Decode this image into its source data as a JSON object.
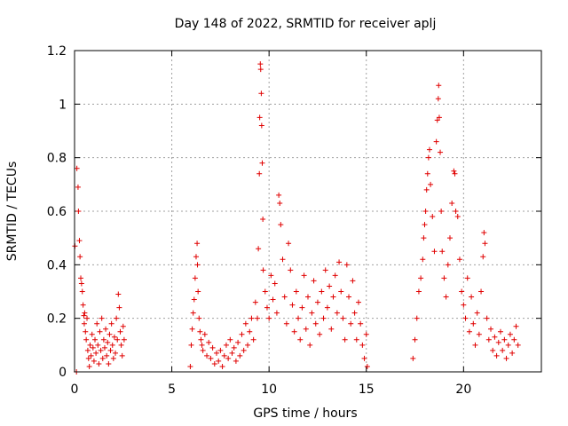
{
  "chart_data": {
    "type": "scatter",
    "title": "Day 148 of 2022, SRMTID for receiver aplj",
    "xlabel": "GPS time / hours",
    "ylabel": "SRMTID / TECUs",
    "xlim": [
      0,
      24
    ],
    "ylim": [
      0,
      1.2
    ],
    "grid": true,
    "x_ticks": [
      0,
      5,
      10,
      15,
      20
    ],
    "x_tick_labels": [
      "0",
      "5",
      "10",
      "15",
      "20"
    ],
    "y_ticks": [
      0,
      0.2,
      0.4,
      0.6,
      0.8,
      1,
      1.2
    ],
    "y_tick_labels": [
      "0",
      "0.2",
      "0.4",
      "0.6",
      "0.8",
      "1",
      "1.2"
    ],
    "marker": "+",
    "series": [
      {
        "name": "SRMTID",
        "color": "#e00000",
        "points": [
          [
            0.02,
            0.47
          ],
          [
            0.1,
            0.0
          ],
          [
            0.12,
            0.76
          ],
          [
            0.18,
            0.69
          ],
          [
            0.2,
            0.6
          ],
          [
            0.25,
            0.49
          ],
          [
            0.28,
            0.43
          ],
          [
            0.32,
            0.35
          ],
          [
            0.36,
            0.33
          ],
          [
            0.4,
            0.3
          ],
          [
            0.44,
            0.25
          ],
          [
            0.48,
            0.21
          ],
          [
            0.5,
            0.18
          ],
          [
            0.52,
            0.22
          ],
          [
            0.56,
            0.15
          ],
          [
            0.6,
            0.12
          ],
          [
            0.64,
            0.2
          ],
          [
            0.68,
            0.08
          ],
          [
            0.72,
            0.05
          ],
          [
            0.76,
            0.02
          ],
          [
            0.8,
            0.1
          ],
          [
            0.85,
            0.06
          ],
          [
            0.9,
            0.14
          ],
          [
            0.95,
            0.09
          ],
          [
            1.0,
            0.04
          ],
          [
            1.05,
            0.12
          ],
          [
            1.1,
            0.07
          ],
          [
            1.15,
            0.18
          ],
          [
            1.2,
            0.1
          ],
          [
            1.25,
            0.03
          ],
          [
            1.3,
            0.15
          ],
          [
            1.35,
            0.08
          ],
          [
            1.4,
            0.2
          ],
          [
            1.45,
            0.05
          ],
          [
            1.5,
            0.12
          ],
          [
            1.55,
            0.09
          ],
          [
            1.6,
            0.16
          ],
          [
            1.65,
            0.06
          ],
          [
            1.7,
            0.11
          ],
          [
            1.75,
            0.03
          ],
          [
            1.8,
            0.14
          ],
          [
            1.85,
            0.08
          ],
          [
            1.9,
            0.18
          ],
          [
            1.95,
            0.1
          ],
          [
            2.0,
            0.05
          ],
          [
            2.05,
            0.13
          ],
          [
            2.1,
            0.07
          ],
          [
            2.15,
            0.2
          ],
          [
            2.2,
            0.12
          ],
          [
            2.25,
            0.29
          ],
          [
            2.3,
            0.24
          ],
          [
            2.35,
            0.15
          ],
          [
            2.4,
            0.1
          ],
          [
            2.45,
            0.06
          ],
          [
            2.5,
            0.17
          ],
          [
            2.55,
            0.12
          ],
          [
            5.95,
            0.02
          ],
          [
            6.0,
            0.1
          ],
          [
            6.05,
            0.16
          ],
          [
            6.1,
            0.22
          ],
          [
            6.15,
            0.27
          ],
          [
            6.2,
            0.35
          ],
          [
            6.25,
            0.43
          ],
          [
            6.3,
            0.48
          ],
          [
            6.32,
            0.4
          ],
          [
            6.35,
            0.3
          ],
          [
            6.4,
            0.2
          ],
          [
            6.45,
            0.15
          ],
          [
            6.5,
            0.12
          ],
          [
            6.55,
            0.1
          ],
          [
            6.6,
            0.08
          ],
          [
            6.7,
            0.14
          ],
          [
            6.8,
            0.06
          ],
          [
            6.9,
            0.11
          ],
          [
            7.0,
            0.05
          ],
          [
            7.1,
            0.09
          ],
          [
            7.2,
            0.03
          ],
          [
            7.3,
            0.07
          ],
          [
            7.4,
            0.04
          ],
          [
            7.5,
            0.08
          ],
          [
            7.6,
            0.02
          ],
          [
            7.7,
            0.06
          ],
          [
            7.8,
            0.1
          ],
          [
            7.9,
            0.05
          ],
          [
            8.0,
            0.12
          ],
          [
            8.1,
            0.07
          ],
          [
            8.2,
            0.09
          ],
          [
            8.3,
            0.04
          ],
          [
            8.4,
            0.11
          ],
          [
            8.5,
            0.06
          ],
          [
            8.6,
            0.14
          ],
          [
            8.7,
            0.08
          ],
          [
            8.8,
            0.18
          ],
          [
            8.9,
            0.1
          ],
          [
            9.0,
            0.15
          ],
          [
            9.1,
            0.2
          ],
          [
            9.2,
            0.12
          ],
          [
            9.3,
            0.26
          ],
          [
            9.4,
            0.2
          ],
          [
            9.45,
            0.46
          ],
          [
            9.5,
            0.74
          ],
          [
            9.52,
            0.95
          ],
          [
            9.55,
            1.15
          ],
          [
            9.57,
            1.13
          ],
          [
            9.6,
            1.04
          ],
          [
            9.62,
            0.92
          ],
          [
            9.65,
            0.78
          ],
          [
            9.68,
            0.57
          ],
          [
            9.7,
            0.38
          ],
          [
            9.8,
            0.3
          ],
          [
            9.9,
            0.24
          ],
          [
            10.0,
            0.2
          ],
          [
            10.1,
            0.36
          ],
          [
            10.2,
            0.27
          ],
          [
            10.3,
            0.33
          ],
          [
            10.4,
            0.22
          ],
          [
            10.5,
            0.66
          ],
          [
            10.55,
            0.63
          ],
          [
            10.6,
            0.55
          ],
          [
            10.7,
            0.42
          ],
          [
            10.8,
            0.28
          ],
          [
            10.9,
            0.18
          ],
          [
            11.0,
            0.48
          ],
          [
            11.1,
            0.38
          ],
          [
            11.2,
            0.25
          ],
          [
            11.3,
            0.15
          ],
          [
            11.4,
            0.3
          ],
          [
            11.5,
            0.2
          ],
          [
            11.6,
            0.12
          ],
          [
            11.7,
            0.24
          ],
          [
            11.8,
            0.36
          ],
          [
            11.9,
            0.16
          ],
          [
            12.0,
            0.28
          ],
          [
            12.1,
            0.1
          ],
          [
            12.2,
            0.22
          ],
          [
            12.3,
            0.34
          ],
          [
            12.4,
            0.18
          ],
          [
            12.5,
            0.26
          ],
          [
            12.6,
            0.14
          ],
          [
            12.7,
            0.3
          ],
          [
            12.8,
            0.2
          ],
          [
            12.9,
            0.38
          ],
          [
            13.0,
            0.24
          ],
          [
            13.1,
            0.32
          ],
          [
            13.2,
            0.16
          ],
          [
            13.3,
            0.28
          ],
          [
            13.4,
            0.36
          ],
          [
            13.5,
            0.22
          ],
          [
            13.6,
            0.41
          ],
          [
            13.7,
            0.3
          ],
          [
            13.8,
            0.2
          ],
          [
            13.9,
            0.12
          ],
          [
            14.0,
            0.4
          ],
          [
            14.1,
            0.28
          ],
          [
            14.2,
            0.18
          ],
          [
            14.3,
            0.34
          ],
          [
            14.4,
            0.22
          ],
          [
            14.5,
            0.12
          ],
          [
            14.6,
            0.26
          ],
          [
            14.7,
            0.18
          ],
          [
            14.8,
            0.1
          ],
          [
            14.9,
            0.05
          ],
          [
            15.0,
            0.14
          ],
          [
            15.05,
            0.02
          ],
          [
            17.4,
            0.05
          ],
          [
            17.5,
            0.12
          ],
          [
            17.6,
            0.2
          ],
          [
            17.7,
            0.3
          ],
          [
            17.8,
            0.35
          ],
          [
            17.9,
            0.42
          ],
          [
            17.95,
            0.5
          ],
          [
            18.0,
            0.55
          ],
          [
            18.05,
            0.6
          ],
          [
            18.1,
            0.68
          ],
          [
            18.15,
            0.74
          ],
          [
            18.2,
            0.8
          ],
          [
            18.25,
            0.83
          ],
          [
            18.3,
            0.7
          ],
          [
            18.4,
            0.58
          ],
          [
            18.5,
            0.45
          ],
          [
            18.6,
            0.86
          ],
          [
            18.65,
            0.94
          ],
          [
            18.7,
            1.02
          ],
          [
            18.72,
            1.07
          ],
          [
            18.75,
            0.95
          ],
          [
            18.8,
            0.82
          ],
          [
            18.85,
            0.6
          ],
          [
            18.9,
            0.45
          ],
          [
            19.0,
            0.35
          ],
          [
            19.1,
            0.28
          ],
          [
            19.2,
            0.4
          ],
          [
            19.3,
            0.5
          ],
          [
            19.4,
            0.63
          ],
          [
            19.5,
            0.75
          ],
          [
            19.55,
            0.74
          ],
          [
            19.6,
            0.6
          ],
          [
            19.7,
            0.58
          ],
          [
            19.8,
            0.42
          ],
          [
            19.9,
            0.3
          ],
          [
            20.0,
            0.25
          ],
          [
            20.1,
            0.2
          ],
          [
            20.2,
            0.35
          ],
          [
            20.3,
            0.15
          ],
          [
            20.4,
            0.28
          ],
          [
            20.5,
            0.18
          ],
          [
            20.6,
            0.1
          ],
          [
            20.7,
            0.22
          ],
          [
            20.8,
            0.14
          ],
          [
            20.9,
            0.3
          ],
          [
            21.0,
            0.43
          ],
          [
            21.05,
            0.52
          ],
          [
            21.1,
            0.48
          ],
          [
            21.2,
            0.2
          ],
          [
            21.3,
            0.12
          ],
          [
            21.4,
            0.16
          ],
          [
            21.5,
            0.08
          ],
          [
            21.6,
            0.13
          ],
          [
            21.7,
            0.06
          ],
          [
            21.8,
            0.11
          ],
          [
            21.9,
            0.15
          ],
          [
            22.0,
            0.08
          ],
          [
            22.1,
            0.12
          ],
          [
            22.2,
            0.05
          ],
          [
            22.3,
            0.1
          ],
          [
            22.4,
            0.14
          ],
          [
            22.5,
            0.07
          ],
          [
            22.6,
            0.12
          ],
          [
            22.7,
            0.17
          ],
          [
            22.8,
            0.1
          ]
        ]
      }
    ]
  }
}
